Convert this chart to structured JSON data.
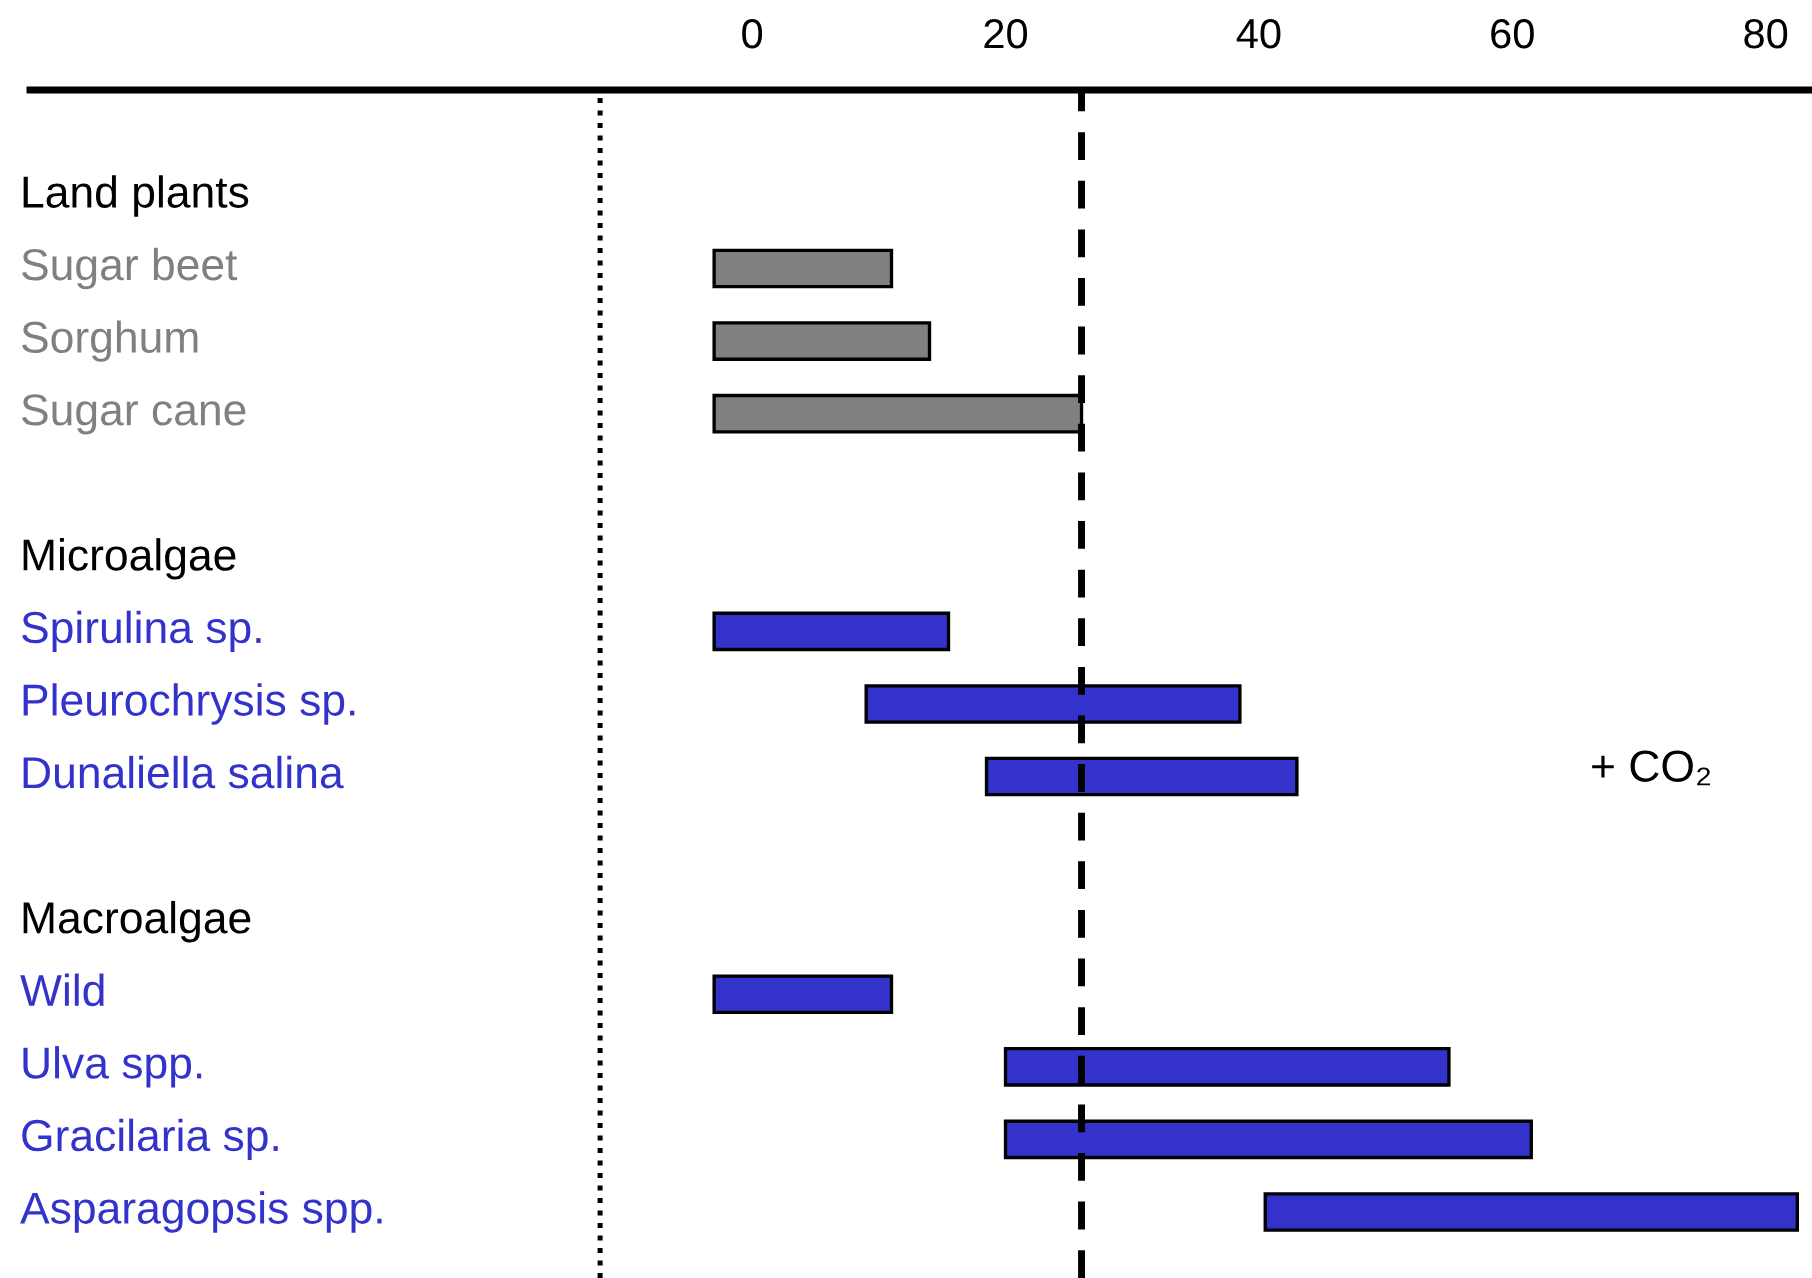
{
  "chart_data": {
    "type": "bar",
    "orientation": "horizontal",
    "categories": [
      "Land plants",
      "Sugar beet",
      "Sorghum",
      "Sugar cane",
      null,
      "Microalgae",
      "Spirulina sp.",
      "Pleurochrysis sp.",
      "Dunaliella salina",
      null,
      "Macroalgae",
      "Wild",
      "Ulva spp.",
      "Gracilaria sp.",
      "Asparagopsis spp."
    ],
    "base": [
      null,
      -3,
      -3,
      -3,
      null,
      null,
      -3,
      9,
      18.5,
      null,
      null,
      -3,
      20,
      20,
      40.5
    ],
    "values": [
      null,
      14,
      17,
      29,
      null,
      null,
      18.5,
      29.5,
      24.5,
      null,
      null,
      14,
      35,
      41.5,
      42
    ],
    "colors": [
      null,
      "#808080",
      "#808080",
      "#808080",
      null,
      null,
      "#3333cc",
      "#3333cc",
      "#3333cc",
      null,
      null,
      "#3333cc",
      "#3333cc",
      "#3333cc",
      "#3333cc"
    ],
    "xlim": [
      -57,
      83.5
    ],
    "xticks": [
      0,
      20,
      40,
      60,
      80
    ],
    "ref_lines": [
      {
        "axis": "x",
        "value": 26,
        "color": "#000000",
        "line_style": "dashed"
      },
      {
        "axis": "x",
        "value": -12,
        "color": "#000000",
        "line_style": "dotted"
      }
    ],
    "annotations": [
      "+ CO₂"
    ],
    "grid": false,
    "legend": false
  }
}
